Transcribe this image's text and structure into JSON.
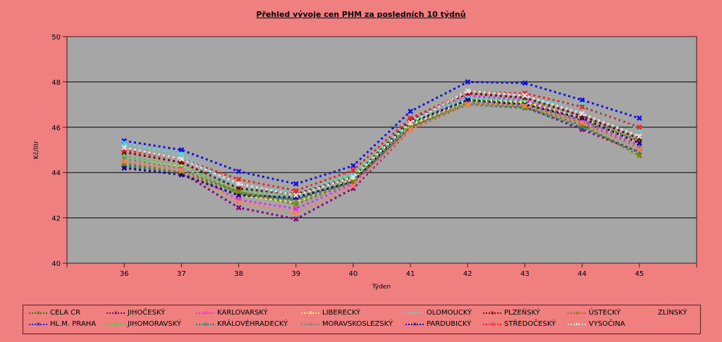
{
  "chart_data": {
    "type": "line",
    "title": "Přehled vývoje cen PHM za posledních 10 týdnů",
    "xlabel": "Týden",
    "ylabel": "Kč/litr",
    "x": [
      36,
      37,
      38,
      39,
      40,
      41,
      42,
      43,
      44,
      45
    ],
    "xlim": [
      35,
      46
    ],
    "ylim": [
      40,
      50
    ],
    "yticks": [
      40,
      42,
      44,
      46,
      48,
      50
    ],
    "grid": "horizontal",
    "legend_position": "bottom",
    "series": [
      {
        "name": "CELA CR",
        "color": "#2E7D0F",
        "values": [
          44.7,
          44.3,
          43.1,
          42.8,
          43.7,
          46.1,
          47.2,
          47.1,
          46.3,
          45.4
        ]
      },
      {
        "name": "HL.M. PRAHA",
        "color": "#1010E0",
        "values": [
          45.4,
          45.0,
          44.05,
          43.5,
          44.3,
          46.7,
          48.0,
          47.95,
          47.2,
          46.4
        ]
      },
      {
        "name": "JIHOČESKÝ",
        "color": "#800080",
        "values": [
          44.3,
          44.0,
          42.45,
          41.95,
          43.3,
          45.9,
          47.0,
          46.9,
          45.9,
          44.9
        ]
      },
      {
        "name": "JIHOMORAVSKÝ",
        "color": "#44D044",
        "values": [
          44.7,
          44.3,
          43.2,
          43.0,
          43.9,
          46.2,
          47.3,
          47.2,
          46.5,
          45.5
        ]
      },
      {
        "name": "KARLOVARSKÝ",
        "color": "#FF20FF",
        "values": [
          44.5,
          44.1,
          42.8,
          42.4,
          43.5,
          46.0,
          47.4,
          47.2,
          46.3,
          45.2
        ]
      },
      {
        "name": "KRÁLOVÉHRADECKÝ",
        "color": "#208080",
        "values": [
          44.3,
          44.0,
          43.0,
          42.8,
          43.6,
          46.0,
          47.0,
          46.85,
          46.0,
          44.9
        ]
      },
      {
        "name": "LIBERECKÝ",
        "color": "#FFFF40",
        "values": [
          44.6,
          44.25,
          43.0,
          42.7,
          43.7,
          46.1,
          47.2,
          47.1,
          46.4,
          45.3
        ]
      },
      {
        "name": "MORAVSKOSLEZSKÝ",
        "color": "#808080",
        "values": [
          44.6,
          44.2,
          43.05,
          42.75,
          43.6,
          46.0,
          47.1,
          47.0,
          46.2,
          45.1
        ]
      },
      {
        "name": "OLOMOUCKÝ",
        "color": "#40E0E0",
        "values": [
          45.3,
          44.8,
          43.3,
          43.2,
          43.9,
          46.3,
          47.3,
          47.2,
          47.0,
          45.9
        ]
      },
      {
        "name": "PARDUBICKÝ",
        "color": "#200080",
        "values": [
          44.2,
          43.9,
          43.0,
          42.9,
          43.6,
          46.2,
          47.2,
          47.0,
          46.4,
          45.3
        ]
      },
      {
        "name": "PLZEŇSKÝ",
        "color": "#800000",
        "values": [
          44.9,
          44.45,
          43.3,
          43.05,
          43.8,
          46.3,
          47.5,
          47.3,
          46.5,
          45.5
        ]
      },
      {
        "name": "STŘEDOČESKÝ",
        "color": "#FF2020",
        "values": [
          45.0,
          44.6,
          43.7,
          43.2,
          44.1,
          46.4,
          47.55,
          47.5,
          46.9,
          46.0
        ]
      },
      {
        "name": "ÚSTECKÝ",
        "color": "#808000",
        "values": [
          44.4,
          44.05,
          43.15,
          42.6,
          43.6,
          46.0,
          47.05,
          46.9,
          46.1,
          44.75
        ]
      },
      {
        "name": "VYSOČINA",
        "color": "#E0E0E0",
        "values": [
          45.1,
          44.6,
          43.5,
          43.0,
          43.8,
          46.2,
          47.6,
          47.4,
          46.6,
          45.6
        ]
      },
      {
        "name": "ZLÍNSKÝ",
        "color": "#FF8050",
        "values": [
          44.5,
          44.1,
          42.7,
          42.2,
          43.4,
          45.9,
          47.0,
          46.95,
          46.2,
          45.0
        ]
      }
    ]
  }
}
